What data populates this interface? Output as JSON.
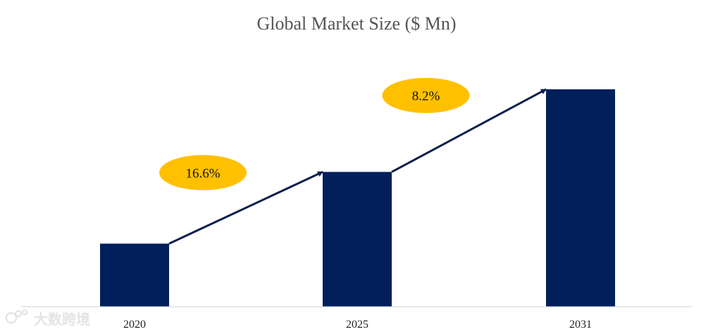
{
  "chart_data": {
    "type": "bar",
    "title": "Global Market Size ($ Mn)",
    "categories": [
      "2020",
      "2025",
      "2031"
    ],
    "values": [
      29,
      62,
      100
    ],
    "ylim": [
      0,
      100
    ],
    "grid": false,
    "legend": "none",
    "bar_color": "#001f5b",
    "annotations": [
      {
        "label": "16.6%",
        "from": 0,
        "to": 1
      },
      {
        "label": "8.2%",
        "from": 1,
        "to": 2
      }
    ],
    "annotation_color": "#ffc000",
    "arrow_color": "#0d1f4d"
  },
  "watermark": {
    "text": "大数跨境"
  }
}
